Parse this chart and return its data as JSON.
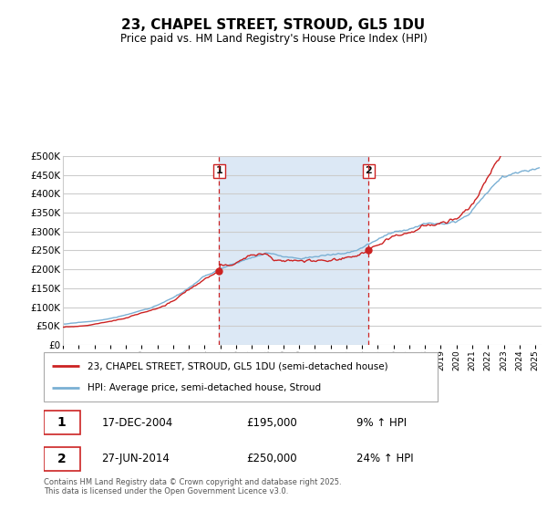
{
  "title": "23, CHAPEL STREET, STROUD, GL5 1DU",
  "subtitle": "Price paid vs. HM Land Registry's House Price Index (HPI)",
  "ylim": [
    0,
    500000
  ],
  "yticks": [
    0,
    50000,
    100000,
    150000,
    200000,
    250000,
    300000,
    350000,
    400000,
    450000,
    500000
  ],
  "ytick_labels": [
    "£0",
    "£50K",
    "£100K",
    "£150K",
    "£200K",
    "£250K",
    "£300K",
    "£350K",
    "£400K",
    "£450K",
    "£500K"
  ],
  "background_color": "#ffffff",
  "plot_bg_color": "#ffffff",
  "grid_color": "#cccccc",
  "span_color": "#dce8f5",
  "red_line_color": "#cc2222",
  "blue_line_color": "#7ab0d4",
  "vline_color": "#cc2222",
  "marker1_price": 195000,
  "marker2_price": 250000,
  "sale1_date": "17-DEC-2004",
  "sale1_price": "£195,000",
  "sale1_hpi": "9% ↑ HPI",
  "sale2_date": "27-JUN-2014",
  "sale2_price": "£250,000",
  "sale2_hpi": "24% ↑ HPI",
  "legend1": "23, CHAPEL STREET, STROUD, GL5 1DU (semi-detached house)",
  "legend2": "HPI: Average price, semi-detached house, Stroud",
  "footer": "Contains HM Land Registry data © Crown copyright and database right 2025.\nThis data is licensed under the Open Government Licence v3.0."
}
